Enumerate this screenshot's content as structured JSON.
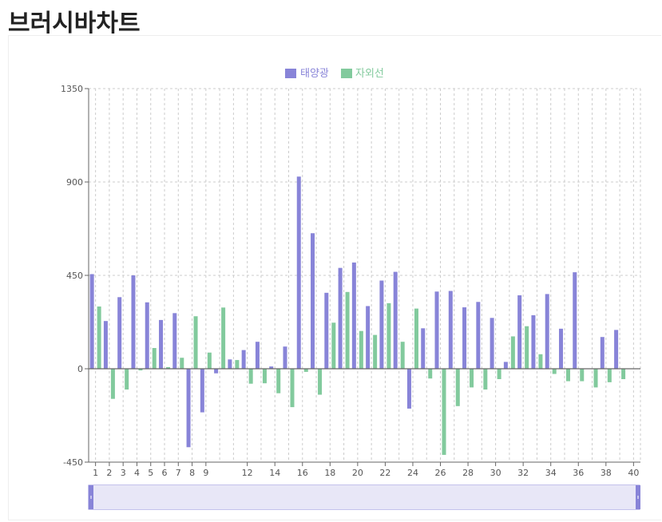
{
  "page": {
    "title": "브러시바차트"
  },
  "colors": {
    "series1": "#8884d8",
    "series2": "#82ca9d",
    "grid": "#cccccc",
    "axis": "#666666",
    "brush_fill": "#e8e7f7"
  },
  "chart_data": {
    "type": "bar",
    "title": "",
    "xlabel": "",
    "ylabel": "",
    "ylim": [
      -450,
      1350
    ],
    "yticks": [
      -450,
      0,
      450,
      900,
      1350
    ],
    "x_tick_labels": [
      "1",
      "2",
      "3",
      "4",
      "5",
      "6",
      "7",
      "8",
      "9",
      "12",
      "14",
      "16",
      "18",
      "20",
      "22",
      "24",
      "26",
      "28",
      "30",
      "32",
      "34",
      "36",
      "38",
      "40"
    ],
    "grid": true,
    "legend_position": "top-center",
    "categories": [
      1,
      2,
      3,
      4,
      5,
      6,
      7,
      8,
      9,
      10,
      11,
      12,
      13,
      14,
      15,
      16,
      17,
      18,
      19,
      20,
      21,
      22,
      23,
      24,
      25,
      26,
      27,
      28,
      29,
      30,
      31,
      32,
      33,
      34,
      35,
      36,
      37,
      38,
      39,
      40
    ],
    "series": [
      {
        "name": "태양광",
        "values": [
          456,
          230,
          345,
          450,
          320,
          235,
          268,
          -378,
          -210,
          -22,
          45,
          90,
          130,
          11,
          107,
          926,
          653,
          366,
          486,
          512,
          302,
          425,
          467,
          -192,
          195,
          372,
          375,
          296,
          322,
          245,
          33,
          354,
          258,
          360,
          193,
          465,
          0,
          153,
          187,
          0
        ]
      },
      {
        "name": "자외선",
        "values": [
          300,
          -145,
          -100,
          -8,
          100,
          8,
          53,
          253,
          78,
          295,
          42,
          -72,
          -70,
          -118,
          -185,
          -15,
          -125,
          222,
          370,
          182,
          163,
          316,
          130,
          290,
          -47,
          -415,
          -180,
          -90,
          -100,
          -50,
          156,
          205,
          70,
          -25,
          -60,
          -60,
          -90,
          -65,
          -50,
          0
        ]
      }
    ],
    "brush": {
      "start_index": 0,
      "end_index": 39
    }
  }
}
